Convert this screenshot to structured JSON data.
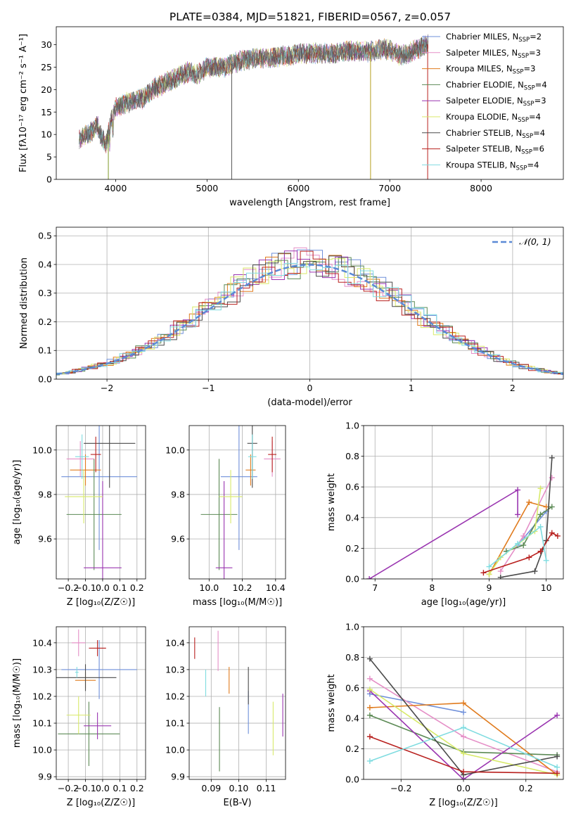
{
  "title": "PLATE=0384, MJD=51821, FIBERID=0567, z=0.057",
  "legend_models": [
    {
      "name": "Chabrier MILES",
      "nssp": "2",
      "color": "#6e8fd9"
    },
    {
      "name": "Salpeter MILES",
      "nssp": "3",
      "color": "#e58fc7"
    },
    {
      "name": "Kroupa MILES",
      "nssp": "3",
      "color": "#e07b1e"
    },
    {
      "name": "Chabrier ELODIE",
      "nssp": "4",
      "color": "#5c8a55"
    },
    {
      "name": "Salpeter ELODIE",
      "nssp": "3",
      "color": "#9a35b0"
    },
    {
      "name": "Kroupa ELODIE",
      "nssp": "4",
      "color": "#d8ea6a"
    },
    {
      "name": "Chabrier STELIB",
      "nssp": "4",
      "color": "#4a4a4a"
    },
    {
      "name": "Salpeter STELIB",
      "nssp": "6",
      "color": "#b8201e"
    },
    {
      "name": "Kroupa STELIB",
      "nssp": "4",
      "color": "#7fdce0"
    }
  ],
  "panel_labels": {
    "spectrum_xlabel": "wavelength [Angstrom, rest frame]",
    "spectrum_ylabel": "Flux [fλ10⁻¹⁷ erg cm⁻² s⁻¹ A⁻¹]",
    "hist_xlabel": "(data-model)/error",
    "hist_ylabel": "Normed distribution",
    "hist_legend": "𝒩(0, 1)",
    "age_label": "age  [log₁₀(age/yr)]",
    "Z_label": "Z [log₁₀(Z/Z☉)]",
    "mass_label": "mass [log₁₀(M/M☉)]",
    "mass_weight_label": "mass weight",
    "ebv_label": "E(B-V)"
  },
  "chart_data": [
    {
      "type": "line",
      "panel": "spectrum",
      "xlim": [
        3350,
        8900
      ],
      "ylim": [
        0,
        34
      ],
      "xticks": [
        4000,
        5000,
        6000,
        7000,
        8000
      ],
      "yticks": [
        0,
        5,
        10,
        15,
        20,
        25,
        30
      ],
      "continuum": [
        [
          3600,
          9
        ],
        [
          3700,
          10
        ],
        [
          3800,
          12
        ],
        [
          3850,
          9
        ],
        [
          3900,
          8
        ],
        [
          3950,
          13
        ],
        [
          4000,
          16
        ],
        [
          4100,
          17
        ],
        [
          4200,
          17.5
        ],
        [
          4300,
          18
        ],
        [
          4400,
          20
        ],
        [
          4500,
          21
        ],
        [
          4600,
          22
        ],
        [
          4700,
          23
        ],
        [
          4800,
          24
        ],
        [
          4900,
          23.5
        ],
        [
          5000,
          25
        ],
        [
          5100,
          25
        ],
        [
          5200,
          25
        ],
        [
          5300,
          26
        ],
        [
          5400,
          26.5
        ],
        [
          5500,
          27
        ],
        [
          5600,
          27
        ],
        [
          5700,
          27
        ],
        [
          5800,
          27.5
        ],
        [
          5900,
          27.5
        ],
        [
          6000,
          28
        ],
        [
          6100,
          28
        ],
        [
          6200,
          28
        ],
        [
          6300,
          28
        ],
        [
          6400,
          28
        ],
        [
          6500,
          28.5
        ],
        [
          6600,
          28.5
        ],
        [
          6700,
          28.5
        ],
        [
          6800,
          28.5
        ],
        [
          6900,
          29
        ],
        [
          7000,
          29
        ],
        [
          7100,
          27.5
        ],
        [
          7200,
          28
        ],
        [
          7300,
          29
        ],
        [
          7400,
          30
        ],
        [
          7500,
          30.5
        ]
      ]
    },
    {
      "type": "bar",
      "panel": "residual-histogram",
      "xlim": [
        -2.5,
        2.5
      ],
      "ylim": [
        0,
        0.53
      ],
      "xticks": [
        -2,
        -1,
        0,
        1,
        2
      ],
      "yticks": [
        0.0,
        0.1,
        0.2,
        0.3,
        0.4,
        0.5
      ],
      "bin_edges_start": -2.5,
      "bin_width": 0.125,
      "gaussian": {
        "mean": 0,
        "sigma": 1
      }
    },
    {
      "type": "scatter",
      "panel": "age-vs-Z",
      "xlim": [
        -0.27,
        0.25
      ],
      "ylim": [
        9.42,
        10.11
      ],
      "xticks": [
        -0.2,
        -0.1,
        0.0,
        0.1,
        0.2
      ],
      "yticks": [
        9.6,
        9.8,
        10.0
      ],
      "points": [
        {
          "series": "Chabrier MILES",
          "x": -0.02,
          "xerr": 0.22,
          "y": 9.88,
          "yerr": 0.33
        },
        {
          "series": "Salpeter MILES",
          "x": -0.13,
          "xerr": 0.08,
          "y": 9.96,
          "yerr": 0.08
        },
        {
          "series": "Kroupa MILES",
          "x": -0.1,
          "xerr": 0.09,
          "y": 9.91,
          "yerr": 0.07
        },
        {
          "series": "Chabrier ELODIE",
          "x": -0.05,
          "xerr": 0.16,
          "y": 9.71,
          "yerr": 0.25
        },
        {
          "series": "Salpeter ELODIE",
          "x": 0.0,
          "xerr": 0.11,
          "y": 9.47,
          "yerr": 0.39
        },
        {
          "series": "Kroupa ELODIE",
          "x": -0.11,
          "xerr": 0.11,
          "y": 9.79,
          "yerr": 0.12
        },
        {
          "series": "Chabrier STELIB",
          "x": 0.04,
          "xerr": 0.15,
          "y": 10.03,
          "yerr": 0.2
        },
        {
          "series": "Salpeter STELIB",
          "x": -0.04,
          "xerr": 0.03,
          "y": 9.98,
          "yerr": 0.08
        },
        {
          "series": "Kroupa STELIB",
          "x": -0.12,
          "xerr": 0.04,
          "y": 9.97,
          "yerr": 0.1
        }
      ]
    },
    {
      "type": "scatter",
      "panel": "age-vs-mass",
      "xlim": [
        9.88,
        10.46
      ],
      "ylim": [
        9.42,
        10.11
      ],
      "xticks": [
        10.0,
        10.2,
        10.4
      ],
      "yticks": [
        9.6,
        9.8,
        10.0
      ],
      "points": [
        {
          "series": "Chabrier MILES",
          "x": 10.18,
          "xerr": 0.11,
          "y": 9.88,
          "yerr": 0.33
        },
        {
          "series": "Salpeter MILES",
          "x": 10.38,
          "xerr": 0.05,
          "y": 9.96,
          "yerr": 0.08
        },
        {
          "series": "Kroupa MILES",
          "x": 10.25,
          "xerr": 0.03,
          "y": 9.91,
          "yerr": 0.07
        },
        {
          "series": "Chabrier ELODIE",
          "x": 10.06,
          "xerr": 0.11,
          "y": 9.71,
          "yerr": 0.25
        },
        {
          "series": "Salpeter ELODIE",
          "x": 10.09,
          "xerr": 0.05,
          "y": 9.47,
          "yerr": 0.39
        },
        {
          "series": "Kroupa ELODIE",
          "x": 10.13,
          "xerr": 0.07,
          "y": 9.79,
          "yerr": 0.12
        },
        {
          "series": "Chabrier STELIB",
          "x": 10.26,
          "xerr": 0.03,
          "y": 10.03,
          "yerr": 0.2
        },
        {
          "series": "Salpeter STELIB",
          "x": 10.38,
          "xerr": 0.025,
          "y": 9.98,
          "yerr": 0.08
        },
        {
          "series": "Kroupa STELIB",
          "x": 10.26,
          "xerr": 0.025,
          "y": 9.97,
          "yerr": 0.1
        }
      ]
    },
    {
      "type": "line",
      "panel": "mass-weight-vs-age",
      "xlim": [
        6.8,
        10.3
      ],
      "ylim": [
        0,
        1
      ],
      "xticks": [
        7,
        8,
        9,
        10
      ],
      "yticks": [
        0.0,
        0.2,
        0.4,
        0.6,
        0.8,
        1.0
      ],
      "series": [
        {
          "name": "Chabrier MILES",
          "points": [
            [
              9.5,
              0.22
            ],
            [
              10.0,
              0.44
            ]
          ]
        },
        {
          "name": "Salpeter MILES",
          "points": [
            [
              9.2,
              0.05
            ],
            [
              9.6,
              0.28
            ],
            [
              10.1,
              0.66
            ]
          ]
        },
        {
          "name": "Kroupa MILES",
          "points": [
            [
              9.0,
              0.03
            ],
            [
              9.7,
              0.5
            ],
            [
              10.0,
              0.47
            ]
          ]
        },
        {
          "name": "Chabrier ELODIE",
          "points": [
            [
              9.3,
              0.18
            ],
            [
              9.6,
              0.22
            ],
            [
              9.9,
              0.42
            ],
            [
              10.1,
              0.47
            ]
          ]
        },
        {
          "name": "Salpeter ELODIE",
          "points": [
            [
              6.9,
              0.0
            ],
            [
              9.5,
              0.58
            ],
            [
              9.5,
              0.42
            ]
          ]
        },
        {
          "name": "Kroupa ELODIE",
          "points": [
            [
              9.0,
              0.03
            ],
            [
              9.2,
              0.14
            ],
            [
              9.8,
              0.31
            ],
            [
              9.9,
              0.59
            ]
          ]
        },
        {
          "name": "Chabrier STELIB",
          "points": [
            [
              9.2,
              0.01
            ],
            [
              9.8,
              0.05
            ],
            [
              10.0,
              0.25
            ],
            [
              10.1,
              0.79
            ]
          ]
        },
        {
          "name": "Salpeter STELIB",
          "points": [
            [
              8.9,
              0.04
            ],
            [
              9.7,
              0.14
            ],
            [
              9.9,
              0.18
            ],
            [
              10.1,
              0.3
            ],
            [
              10.2,
              0.28
            ]
          ]
        },
        {
          "name": "Kroupa STELIB",
          "points": [
            [
              9.0,
              0.08
            ],
            [
              9.5,
              0.23
            ],
            [
              9.9,
              0.34
            ],
            [
              10.0,
              0.12
            ]
          ]
        }
      ]
    },
    {
      "type": "scatter",
      "panel": "mass-vs-Z",
      "xlim": [
        -0.27,
        0.25
      ],
      "ylim": [
        9.89,
        10.46
      ],
      "xticks": [
        -0.2,
        -0.1,
        0.0,
        0.1,
        0.2
      ],
      "yticks": [
        9.9,
        10.0,
        10.1,
        10.2,
        10.3,
        10.4
      ],
      "points": [
        {
          "series": "Chabrier MILES",
          "x": -0.02,
          "xerr": 0.22,
          "y": 10.3,
          "yerr": 0.11
        },
        {
          "series": "Salpeter MILES",
          "x": -0.14,
          "xerr": 0.04,
          "y": 10.4,
          "yerr": 0.05
        },
        {
          "series": "Kroupa MILES",
          "x": -0.1,
          "xerr": 0.06,
          "y": 10.26,
          "yerr": 0.03
        },
        {
          "series": "Chabrier ELODIE",
          "x": -0.08,
          "xerr": 0.18,
          "y": 10.06,
          "yerr": 0.12
        },
        {
          "series": "Salpeter ELODIE",
          "x": -0.03,
          "xerr": 0.08,
          "y": 10.09,
          "yerr": 0.05
        },
        {
          "series": "Kroupa ELODIE",
          "x": -0.14,
          "xerr": 0.07,
          "y": 10.13,
          "yerr": 0.07
        },
        {
          "series": "Chabrier STELIB",
          "x": -0.1,
          "xerr": 0.18,
          "y": 10.27,
          "yerr": 0.05
        },
        {
          "series": "Salpeter STELIB",
          "x": -0.03,
          "xerr": 0.05,
          "y": 10.38,
          "yerr": 0.03
        },
        {
          "series": "Kroupa STELIB",
          "x": -0.15,
          "xerr": 0.01,
          "y": 10.29,
          "yerr": 0.02
        }
      ]
    },
    {
      "type": "scatter",
      "panel": "mass-vs-EBV",
      "xlim": [
        0.082,
        0.117
      ],
      "ylim": [
        9.89,
        10.46
      ],
      "xticks": [
        0.09,
        0.1,
        0.11
      ],
      "yticks": [
        9.9,
        10.0,
        10.1,
        10.2,
        10.3,
        10.4
      ],
      "points": [
        {
          "series": "Chabrier MILES",
          "x": 0.1035,
          "y": 10.14,
          "yerr": 0.08
        },
        {
          "series": "Salpeter MILES",
          "x": 0.0925,
          "y": 10.37,
          "yerr": 0.075
        },
        {
          "series": "Kroupa MILES",
          "x": 0.0965,
          "y": 10.26,
          "yerr": 0.05
        },
        {
          "series": "Chabrier ELODIE",
          "x": 0.093,
          "y": 10.04,
          "yerr": 0.12
        },
        {
          "series": "Salpeter ELODIE",
          "x": 0.116,
          "y": 10.13,
          "yerr": 0.08
        },
        {
          "series": "Kroupa ELODIE",
          "x": 0.1125,
          "y": 10.08,
          "yerr": 0.1
        },
        {
          "series": "Chabrier STELIB",
          "x": 0.1035,
          "y": 10.24,
          "yerr": 0.07
        },
        {
          "series": "Salpeter STELIB",
          "x": 0.084,
          "y": 10.38,
          "yerr": 0.04
        },
        {
          "series": "Kroupa STELIB",
          "x": 0.088,
          "y": 10.25,
          "yerr": 0.05
        }
      ]
    },
    {
      "type": "line",
      "panel": "mass-weight-vs-Z",
      "xlim": [
        -0.32,
        0.32
      ],
      "ylim": [
        0,
        1
      ],
      "xticks": [
        -0.2,
        0.0,
        0.2
      ],
      "yticks": [
        0.0,
        0.2,
        0.4,
        0.6,
        0.8,
        1.0
      ],
      "series": [
        {
          "name": "Chabrier MILES",
          "points": [
            [
              -0.3,
              0.56
            ],
            [
              0.0,
              0.44
            ]
          ]
        },
        {
          "name": "Salpeter MILES",
          "points": [
            [
              -0.3,
              0.66
            ],
            [
              0.0,
              0.28
            ],
            [
              0.3,
              0.05
            ]
          ]
        },
        {
          "name": "Kroupa MILES",
          "points": [
            [
              -0.3,
              0.47
            ],
            [
              0.0,
              0.5
            ],
            [
              0.3,
              0.03
            ]
          ]
        },
        {
          "name": "Chabrier ELODIE",
          "points": [
            [
              -0.3,
              0.42
            ],
            [
              0.0,
              0.18
            ],
            [
              0.3,
              0.16
            ]
          ]
        },
        {
          "name": "Salpeter ELODIE",
          "points": [
            [
              -0.3,
              0.58
            ],
            [
              0.0,
              0.0
            ],
            [
              0.3,
              0.42
            ]
          ]
        },
        {
          "name": "Kroupa ELODIE",
          "points": [
            [
              -0.3,
              0.59
            ],
            [
              0.0,
              0.17
            ],
            [
              0.3,
              0.03
            ]
          ]
        },
        {
          "name": "Chabrier STELIB",
          "points": [
            [
              -0.3,
              0.79
            ],
            [
              0.0,
              0.03
            ],
            [
              0.3,
              0.15
            ]
          ]
        },
        {
          "name": "Salpeter STELIB",
          "points": [
            [
              -0.3,
              0.28
            ],
            [
              0.0,
              0.05
            ],
            [
              0.3,
              0.04
            ]
          ]
        },
        {
          "name": "Kroupa STELIB",
          "points": [
            [
              -0.3,
              0.12
            ],
            [
              0.0,
              0.34
            ],
            [
              0.3,
              0.08
            ]
          ]
        }
      ]
    }
  ]
}
